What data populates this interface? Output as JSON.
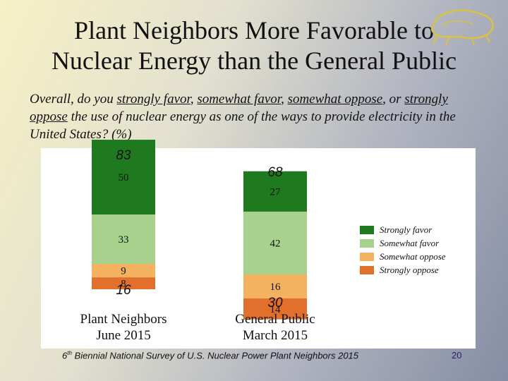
{
  "slide": {
    "title_line1": "Plant Neighbors More Favorable to",
    "title_line2": "Nuclear Energy than the General Public",
    "question": {
      "p1": "Overall, do you ",
      "o1": "strongly favor",
      "p2": ", ",
      "o2": "somewhat favor",
      "p3": ", ",
      "o3": "somewhat oppose",
      "p4": ", or ",
      "o4": "strongly oppose",
      "p5": " the use of nuclear energy as one of the ways to provide electricity in the United States? (%)"
    },
    "footer": {
      "ordinal": "6",
      "suffix": "th",
      "text": " Biennial National Survey of U.S. Nuclear Power Plant Neighbors 2015"
    },
    "page_number": "20"
  },
  "chart_data": {
    "type": "bar",
    "stacked": true,
    "categories": [
      {
        "line1": "Plant Neighbors",
        "line2": "June 2015"
      },
      {
        "line1": "General Public",
        "line2": "March 2015"
      }
    ],
    "series": [
      {
        "name": "Strongly favor",
        "color": "#1f7a1f",
        "values": [
          50,
          27
        ]
      },
      {
        "name": "Somewhat favor",
        "color": "#a9d18e",
        "values": [
          33,
          42
        ]
      },
      {
        "name": "Somewhat oppose",
        "color": "#f4b160",
        "values": [
          9,
          16
        ]
      },
      {
        "name": "Strongly oppose",
        "color": "#e0702b",
        "values": [
          8,
          14
        ]
      }
    ],
    "net_favor": [
      83,
      68
    ],
    "net_oppose": [
      16,
      30
    ],
    "legend_position": "right",
    "grid": false
  }
}
